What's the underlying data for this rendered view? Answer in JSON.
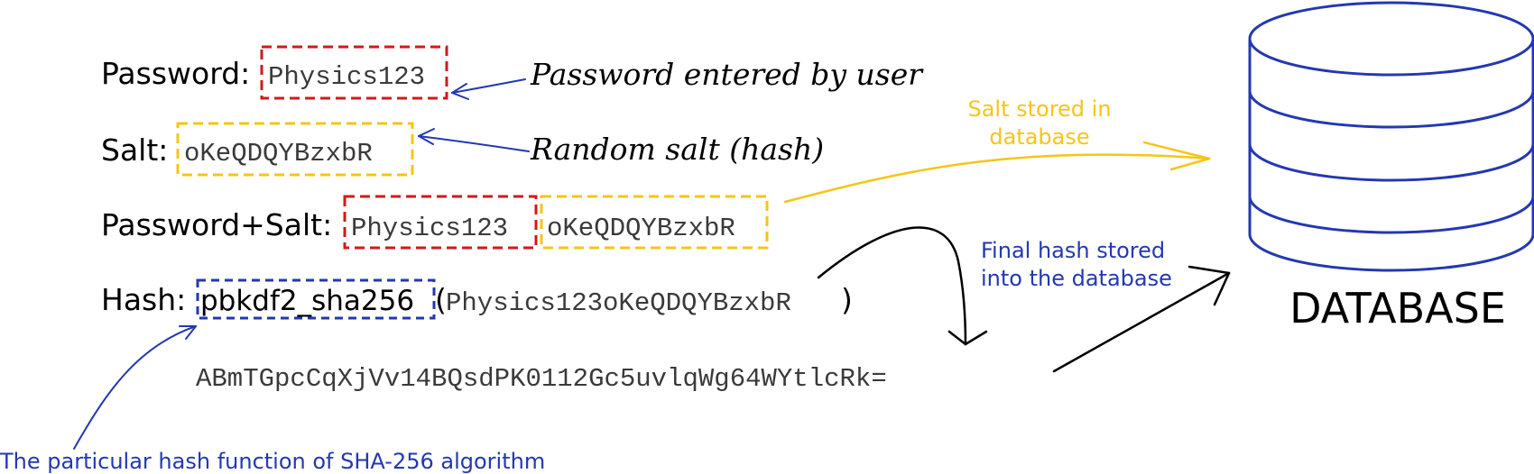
{
  "colors": {
    "red": "#d11a1a",
    "yellow": "#f5c518",
    "blue": "#2338b0",
    "black": "#000000",
    "text_gray": "#3a3a3a"
  },
  "rows": {
    "password_label": "Password:",
    "password_value": "Physics123",
    "salt_label": "Salt:",
    "salt_value": "oKeQDQYBzxbR",
    "combined_label": "Password+Salt:",
    "combined_password": "Physics123",
    "combined_salt": "oKeQDQYBzxbR",
    "hash_label": "Hash:",
    "hash_function": "pbkdf2_sha256",
    "hash_open_paren": "(",
    "hash_argument": "Physics123oKeQDQYBzxbR",
    "hash_close_paren": ")",
    "hash_result": "ABmTGpcCqXjVv14BQsdPK0112Gc5uvlqWg64WYtlcRk="
  },
  "annotations": {
    "password_note": "Password entered by user",
    "salt_note": "Random salt (hash)",
    "salt_stored_line1": "Salt stored in",
    "salt_stored_line2": "database",
    "final_hash_line1": "Final hash stored",
    "final_hash_line2": "into the database",
    "hash_function_note": "The particular hash function of SHA-256 algorithm"
  },
  "database": {
    "label": "DATABASE",
    "icon": "database-cylinder-icon"
  }
}
